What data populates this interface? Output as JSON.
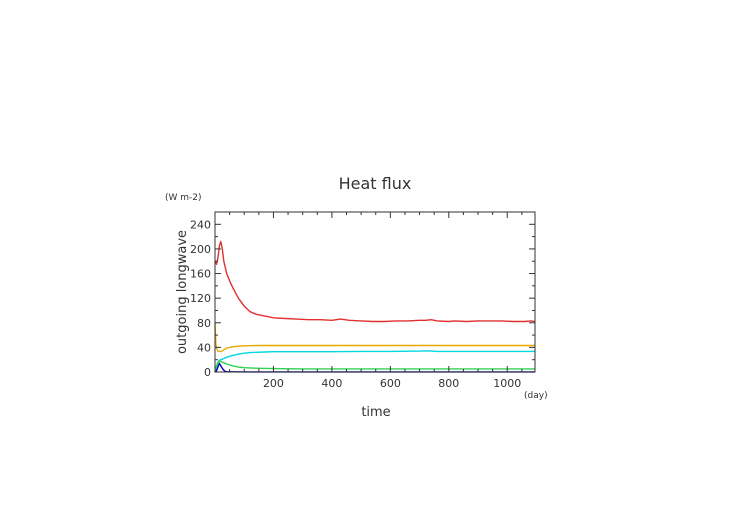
{
  "chart_data": {
    "type": "line",
    "title": "Heat flux",
    "xlabel": "time",
    "ylabel": "outgoing longwave",
    "x_unit": "(day)",
    "y_unit": "(W m-2)",
    "xlim": [
      0,
      1095
    ],
    "ylim": [
      0,
      260
    ],
    "x_ticks": [
      200,
      400,
      600,
      800,
      1000
    ],
    "y_ticks": [
      0,
      40,
      80,
      120,
      160,
      200,
      240
    ],
    "grid": false,
    "series": [
      {
        "color": "#e23030",
        "x": [
          0,
          5,
          10,
          15,
          20,
          25,
          30,
          40,
          50,
          60,
          80,
          100,
          120,
          140,
          160,
          180,
          200,
          240,
          280,
          320,
          360,
          400,
          430,
          460,
          500,
          540,
          580,
          620,
          660,
          700,
          720,
          740,
          760,
          800,
          820,
          860,
          900,
          940,
          980,
          1020,
          1060,
          1080,
          1095
        ],
        "y": [
          180,
          175,
          185,
          205,
          212,
          200,
          180,
          160,
          148,
          138,
          120,
          107,
          98,
          94,
          92,
          90,
          88,
          87,
          86,
          85,
          85,
          84,
          86,
          84,
          83,
          82,
          82,
          83,
          83,
          84,
          84,
          85,
          83,
          82,
          83,
          82,
          83,
          83,
          83,
          82,
          82,
          83,
          82
        ]
      },
      {
        "color": "#e8a800",
        "x": [
          0,
          3,
          6,
          10,
          20,
          30,
          40,
          60,
          80,
          100,
          150,
          200,
          300,
          400,
          500,
          600,
          700,
          800,
          900,
          1000,
          1095
        ],
        "y": [
          80,
          45,
          38,
          34,
          33,
          36,
          39,
          41,
          42,
          42.5,
          43,
          43,
          43,
          43,
          43,
          43,
          43,
          43,
          43,
          43,
          43
        ]
      },
      {
        "color": "#00d8e0",
        "x": [
          0,
          5,
          10,
          15,
          20,
          30,
          40,
          60,
          80,
          100,
          120,
          140,
          170,
          200,
          300,
          400,
          500,
          600,
          700,
          730,
          760,
          800,
          900,
          1000,
          1095
        ],
        "y": [
          0,
          10,
          16,
          19,
          20,
          22,
          24,
          27,
          29,
          30.5,
          31.5,
          32,
          32.5,
          33,
          33,
          33,
          33.5,
          33.5,
          34,
          34.5,
          33.5,
          33.5,
          33.5,
          33.5,
          33.5
        ]
      },
      {
        "color": "#30d050",
        "x": [
          0,
          5,
          10,
          15,
          20,
          30,
          40,
          60,
          80,
          100,
          150,
          200,
          300,
          400,
          600,
          800,
          1000,
          1095
        ],
        "y": [
          0,
          9,
          15,
          18,
          17,
          15,
          13,
          10,
          8,
          7,
          6,
          5.5,
          5,
          5,
          5,
          5,
          5,
          5
        ]
      },
      {
        "color": "#0000c0",
        "x": [
          0,
          5,
          10,
          15,
          20,
          25,
          30,
          35,
          40,
          60,
          100,
          200,
          400,
          600,
          800,
          1000,
          1095
        ],
        "y": [
          0,
          2,
          8,
          14,
          10,
          6,
          3,
          1,
          0.5,
          0.3,
          0.2,
          0.1,
          0.1,
          0.1,
          0.1,
          0.1,
          0.1
        ]
      }
    ]
  }
}
